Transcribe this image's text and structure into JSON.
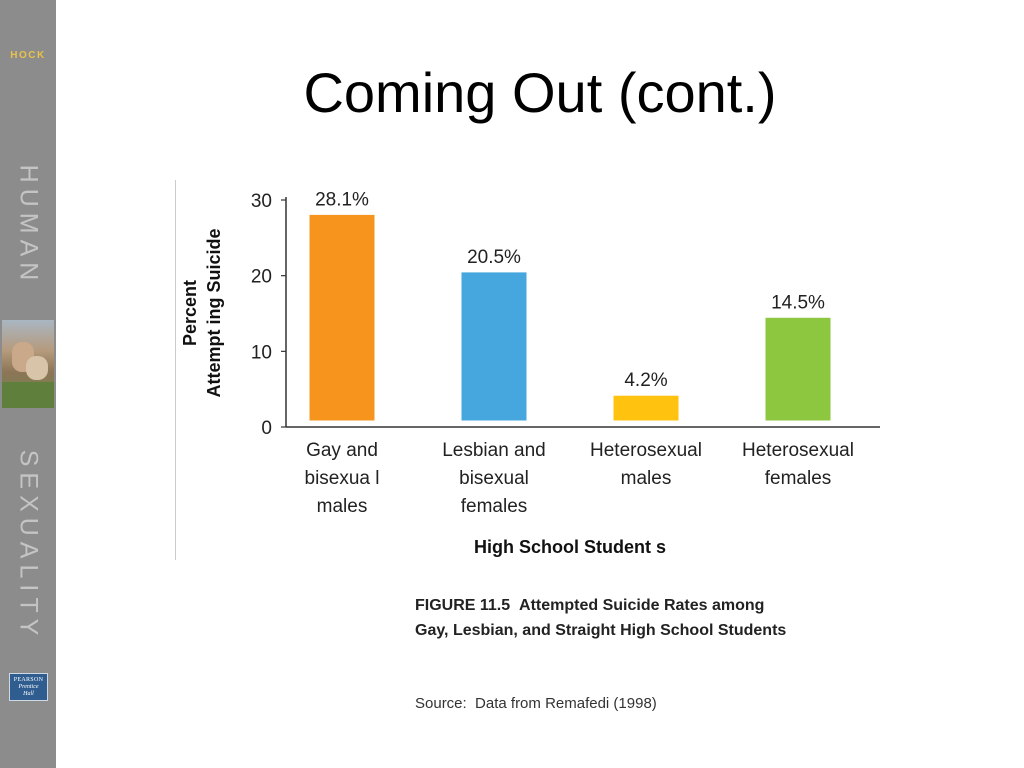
{
  "sidebar": {
    "author": "HOCK",
    "word1": "HUMAN",
    "word2": "SEXUALITY",
    "publisher_line1": "PEARSON",
    "publisher_line2": "Prentice",
    "publisher_line3": "Hall"
  },
  "slide": {
    "title": "Coming Out (cont.)"
  },
  "figure": {
    "label": "FIGURE 11.5",
    "title": "Attempted Suicide Rates among Gay, Lesbian, and Straight High School Students",
    "source_label": "Source:",
    "source_text": "Data from Remafedi (1998)"
  },
  "chart_data": {
    "type": "bar",
    "categories": [
      [
        "Gay and",
        "bisexua l",
        "males"
      ],
      [
        "Lesbian and",
        "bisexual",
        "females"
      ],
      [
        "Heterosexual",
        "males"
      ],
      [
        "Heterosexual",
        "females"
      ]
    ],
    "values": [
      28.1,
      20.5,
      4.2,
      14.5
    ],
    "data_labels": [
      "28.1%",
      "20.5%",
      "4.2%",
      "14.5%"
    ],
    "colors": [
      "#f7941d",
      "#45a7dd",
      "#ffc20e",
      "#8dc63f"
    ],
    "ylabel": [
      "Percent",
      "Attempt ing Suicide"
    ],
    "xlabel": "High School Student s",
    "ylim": [
      0,
      30
    ],
    "yticks": [
      0,
      10,
      20,
      30
    ],
    "grid": false,
    "legend": "none"
  }
}
